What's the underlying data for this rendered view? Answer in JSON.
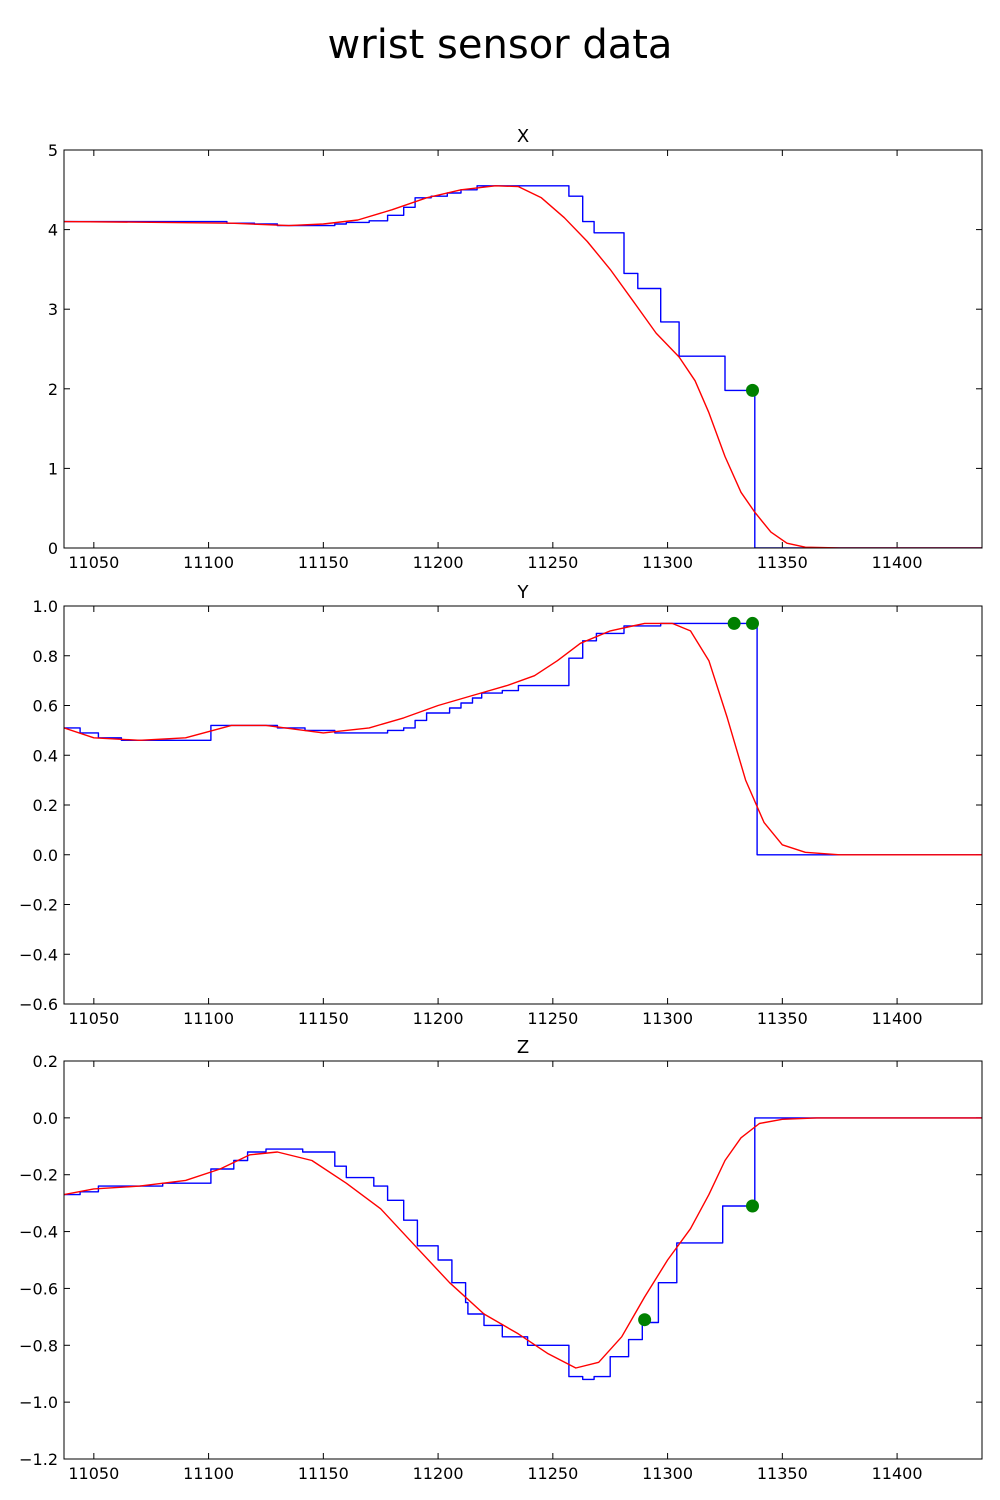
{
  "figure": {
    "title": "wrist sensor data"
  },
  "colors": {
    "raw": "#0000ff",
    "smooth": "#ff0000",
    "marker": "#008000"
  },
  "chart_data": [
    {
      "type": "line",
      "title": "X",
      "xlim": [
        11037,
        11437
      ],
      "ylim": [
        0,
        5
      ],
      "xticks": [
        11050,
        11100,
        11150,
        11200,
        11250,
        11300,
        11350,
        11400
      ],
      "yticks": [
        0,
        1,
        2,
        3,
        4,
        5
      ],
      "ytick_labels": [
        "0",
        "1",
        "2",
        "3",
        "4",
        "5"
      ],
      "series": [
        {
          "style": "step",
          "color": "#0000ff",
          "points": [
            [
              11037,
              4.1
            ],
            [
              11100,
              4.1
            ],
            [
              11108,
              4.08
            ],
            [
              11120,
              4.07
            ],
            [
              11130,
              4.05
            ],
            [
              11155,
              4.07
            ],
            [
              11160,
              4.09
            ],
            [
              11170,
              4.11
            ],
            [
              11178,
              4.18
            ],
            [
              11185,
              4.28
            ],
            [
              11190,
              4.4
            ],
            [
              11197,
              4.42
            ],
            [
              11204,
              4.46
            ],
            [
              11210,
              4.5
            ],
            [
              11217,
              4.55
            ],
            [
              11257,
              4.42
            ],
            [
              11263,
              4.1
            ],
            [
              11268,
              3.96
            ],
            [
              11281,
              3.45
            ],
            [
              11287,
              3.26
            ],
            [
              11297,
              2.84
            ],
            [
              11305,
              2.41
            ],
            [
              11325,
              1.98
            ],
            [
              11337,
              1.98
            ],
            [
              11338,
              0
            ],
            [
              11437,
              0
            ]
          ]
        },
        {
          "style": "smooth",
          "color": "#ff0000",
          "points": [
            [
              11037,
              4.1
            ],
            [
              11080,
              4.09
            ],
            [
              11110,
              4.08
            ],
            [
              11135,
              4.05
            ],
            [
              11150,
              4.07
            ],
            [
              11165,
              4.12
            ],
            [
              11180,
              4.25
            ],
            [
              11195,
              4.4
            ],
            [
              11210,
              4.5
            ],
            [
              11225,
              4.55
            ],
            [
              11235,
              4.54
            ],
            [
              11245,
              4.4
            ],
            [
              11255,
              4.15
            ],
            [
              11265,
              3.85
            ],
            [
              11275,
              3.5
            ],
            [
              11285,
              3.1
            ],
            [
              11295,
              2.7
            ],
            [
              11305,
              2.4
            ],
            [
              11312,
              2.1
            ],
            [
              11318,
              1.7
            ],
            [
              11325,
              1.15
            ],
            [
              11332,
              0.7
            ],
            [
              11338,
              0.45
            ],
            [
              11345,
              0.2
            ],
            [
              11352,
              0.06
            ],
            [
              11360,
              0.01
            ],
            [
              11375,
              0
            ],
            [
              11437,
              0
            ]
          ]
        }
      ],
      "markers": [
        [
          11337,
          1.98
        ]
      ]
    },
    {
      "type": "line",
      "title": "Y",
      "xlim": [
        11037,
        11437
      ],
      "ylim": [
        -0.6,
        1.0
      ],
      "xticks": [
        11050,
        11100,
        11150,
        11200,
        11250,
        11300,
        11350,
        11400
      ],
      "yticks": [
        -0.6,
        -0.4,
        -0.2,
        0.0,
        0.2,
        0.4,
        0.6,
        0.8,
        1.0
      ],
      "ytick_labels": [
        "−0.6",
        "−0.4",
        "−0.2",
        "0.0",
        "0.2",
        "0.4",
        "0.6",
        "0.8",
        "1.0"
      ],
      "series": [
        {
          "style": "step",
          "color": "#0000ff",
          "points": [
            [
              11037,
              0.51
            ],
            [
              11044,
              0.49
            ],
            [
              11052,
              0.47
            ],
            [
              11062,
              0.46
            ],
            [
              11101,
              0.52
            ],
            [
              11120,
              0.52
            ],
            [
              11130,
              0.51
            ],
            [
              11142,
              0.5
            ],
            [
              11155,
              0.49
            ],
            [
              11170,
              0.49
            ],
            [
              11178,
              0.5
            ],
            [
              11185,
              0.51
            ],
            [
              11190,
              0.54
            ],
            [
              11195,
              0.57
            ],
            [
              11205,
              0.59
            ],
            [
              11210,
              0.61
            ],
            [
              11215,
              0.63
            ],
            [
              11219,
              0.65
            ],
            [
              11228,
              0.66
            ],
            [
              11235,
              0.68
            ],
            [
              11255,
              0.68
            ],
            [
              11257,
              0.79
            ],
            [
              11263,
              0.86
            ],
            [
              11269,
              0.89
            ],
            [
              11281,
              0.92
            ],
            [
              11297,
              0.93
            ],
            [
              11337,
              0.93
            ],
            [
              11339,
              0
            ],
            [
              11437,
              0
            ]
          ]
        },
        {
          "style": "smooth",
          "color": "#ff0000",
          "points": [
            [
              11037,
              0.51
            ],
            [
              11050,
              0.47
            ],
            [
              11070,
              0.46
            ],
            [
              11090,
              0.47
            ],
            [
              11110,
              0.52
            ],
            [
              11125,
              0.52
            ],
            [
              11150,
              0.49
            ],
            [
              11170,
              0.51
            ],
            [
              11185,
              0.55
            ],
            [
              11200,
              0.6
            ],
            [
              11215,
              0.64
            ],
            [
              11230,
              0.68
            ],
            [
              11242,
              0.72
            ],
            [
              11252,
              0.78
            ],
            [
              11262,
              0.85
            ],
            [
              11275,
              0.9
            ],
            [
              11290,
              0.93
            ],
            [
              11302,
              0.93
            ],
            [
              11310,
              0.9
            ],
            [
              11318,
              0.78
            ],
            [
              11326,
              0.55
            ],
            [
              11334,
              0.3
            ],
            [
              11342,
              0.13
            ],
            [
              11350,
              0.04
            ],
            [
              11360,
              0.01
            ],
            [
              11375,
              0
            ],
            [
              11437,
              0
            ]
          ]
        }
      ],
      "markers": [
        [
          11329,
          0.93
        ],
        [
          11337,
          0.93
        ]
      ]
    },
    {
      "type": "line",
      "title": "Z",
      "xlim": [
        11037,
        11437
      ],
      "ylim": [
        -1.2,
        0.2
      ],
      "xticks": [
        11050,
        11100,
        11150,
        11200,
        11250,
        11300,
        11350,
        11400
      ],
      "yticks": [
        -1.2,
        -1.0,
        -0.8,
        -0.6,
        -0.4,
        -0.2,
        0.0,
        0.2
      ],
      "ytick_labels": [
        "−1.2",
        "−1.0",
        "−0.8",
        "−0.6",
        "−0.4",
        "−0.2",
        "0.0",
        "0.2"
      ],
      "series": [
        {
          "style": "step",
          "color": "#0000ff",
          "points": [
            [
              11037,
              -0.27
            ],
            [
              11044,
              -0.26
            ],
            [
              11052,
              -0.24
            ],
            [
              11080,
              -0.23
            ],
            [
              11101,
              -0.18
            ],
            [
              11111,
              -0.15
            ],
            [
              11117,
              -0.12
            ],
            [
              11125,
              -0.11
            ],
            [
              11141,
              -0.12
            ],
            [
              11155,
              -0.17
            ],
            [
              11160,
              -0.21
            ],
            [
              11172,
              -0.24
            ],
            [
              11178,
              -0.29
            ],
            [
              11185,
              -0.36
            ],
            [
              11191,
              -0.45
            ],
            [
              11200,
              -0.5
            ],
            [
              11206,
              -0.58
            ],
            [
              11212,
              -0.65
            ],
            [
              11213,
              -0.69
            ],
            [
              11220,
              -0.73
            ],
            [
              11228,
              -0.77
            ],
            [
              11239,
              -0.8
            ],
            [
              11257,
              -0.91
            ],
            [
              11263,
              -0.92
            ],
            [
              11268,
              -0.91
            ],
            [
              11275,
              -0.84
            ],
            [
              11283,
              -0.78
            ],
            [
              11289,
              -0.72
            ],
            [
              11296,
              -0.58
            ],
            [
              11304,
              -0.44
            ],
            [
              11324,
              -0.31
            ],
            [
              11336,
              -0.31
            ],
            [
              11338,
              0
            ],
            [
              11437,
              0
            ]
          ]
        },
        {
          "style": "smooth",
          "color": "#ff0000",
          "points": [
            [
              11037,
              -0.27
            ],
            [
              11050,
              -0.25
            ],
            [
              11070,
              -0.24
            ],
            [
              11090,
              -0.22
            ],
            [
              11105,
              -0.18
            ],
            [
              11118,
              -0.13
            ],
            [
              11130,
              -0.12
            ],
            [
              11145,
              -0.15
            ],
            [
              11160,
              -0.23
            ],
            [
              11175,
              -0.32
            ],
            [
              11190,
              -0.45
            ],
            [
              11205,
              -0.58
            ],
            [
              11220,
              -0.69
            ],
            [
              11235,
              -0.76
            ],
            [
              11248,
              -0.83
            ],
            [
              11260,
              -0.88
            ],
            [
              11270,
              -0.86
            ],
            [
              11280,
              -0.77
            ],
            [
              11290,
              -0.63
            ],
            [
              11300,
              -0.5
            ],
            [
              11310,
              -0.39
            ],
            [
              11318,
              -0.27
            ],
            [
              11325,
              -0.15
            ],
            [
              11332,
              -0.07
            ],
            [
              11340,
              -0.02
            ],
            [
              11350,
              -0.005
            ],
            [
              11365,
              0
            ],
            [
              11437,
              0
            ]
          ]
        }
      ],
      "markers": [
        [
          11290,
          -0.71
        ],
        [
          11337,
          -0.31
        ]
      ]
    }
  ]
}
